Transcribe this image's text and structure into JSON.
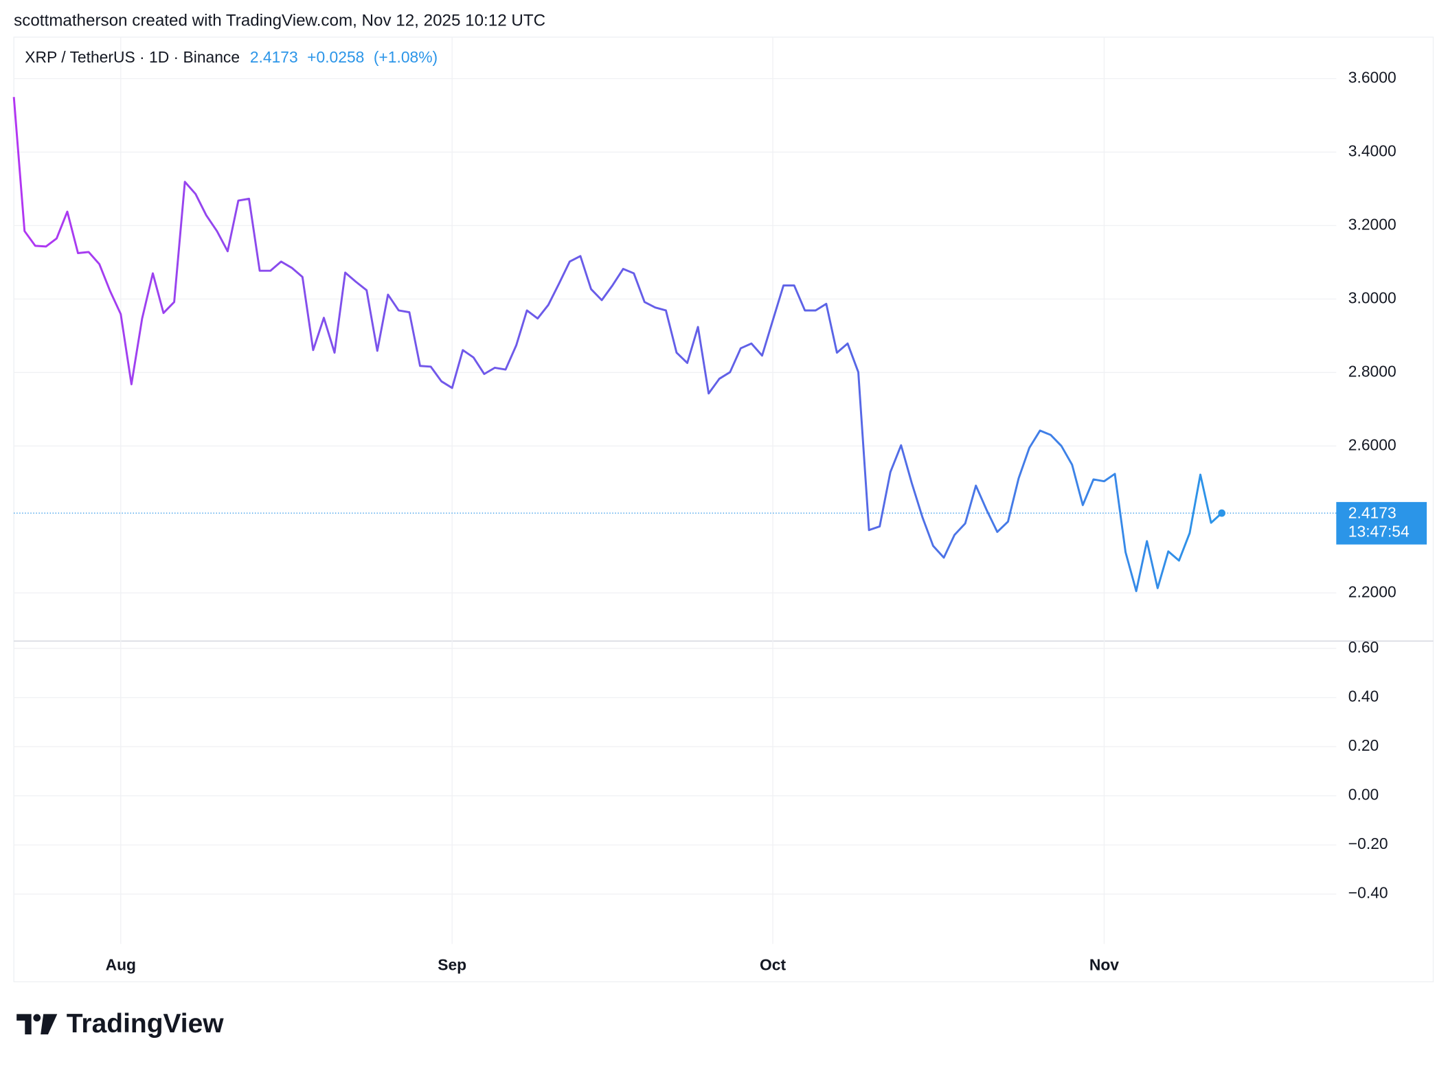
{
  "attribution": "scottmatherson created with TradingView.com, Nov 12, 2025 10:12 UTC",
  "logo": "TradingView",
  "chart_data": [
    {
      "type": "line",
      "title": "XRP / TetherUS · 1D · Binance",
      "change": "+0.0258",
      "change_percent": "(+1.08%)",
      "countdown": "13:47:54",
      "colors": [
        "#b236f2",
        "#7357ea",
        "#5c63e6",
        "#2b95e8"
      ],
      "categories": [
        null,
        null,
        null,
        null,
        null,
        null,
        null,
        null,
        null,
        null,
        "Aug",
        null,
        null,
        null,
        null,
        null,
        null,
        null,
        null,
        null,
        null,
        null,
        null,
        null,
        null,
        null,
        null,
        null,
        null,
        null,
        null,
        null,
        null,
        null,
        null,
        null,
        null,
        null,
        null,
        null,
        null,
        "Sep",
        null,
        null,
        null,
        null,
        null,
        null,
        null,
        null,
        null,
        null,
        null,
        null,
        null,
        null,
        null,
        null,
        null,
        null,
        null,
        null,
        null,
        null,
        null,
        null,
        null,
        null,
        null,
        null,
        null,
        "Oct",
        null,
        null,
        null,
        null,
        null,
        null,
        null,
        null,
        null,
        null,
        null,
        null,
        null,
        null,
        null,
        null,
        null,
        null,
        null,
        null,
        null,
        null,
        null,
        null,
        null,
        null,
        null,
        null,
        null,
        null,
        "Nov",
        null,
        null,
        null,
        null,
        null,
        null,
        null,
        null,
        null,
        null,
        null
      ],
      "values": [
        3.55,
        3.185,
        3.145,
        3.143,
        3.165,
        3.238,
        3.125,
        3.128,
        3.095,
        3.022,
        2.959,
        2.768,
        2.947,
        3.07,
        2.962,
        2.992,
        3.319,
        3.286,
        3.228,
        3.185,
        3.13,
        3.268,
        3.273,
        3.077,
        3.077,
        3.102,
        3.085,
        3.06,
        2.861,
        2.949,
        2.854,
        3.072,
        3.047,
        3.024,
        2.859,
        3.012,
        2.969,
        2.964,
        2.818,
        2.816,
        2.776,
        2.758,
        2.861,
        2.841,
        2.796,
        2.813,
        2.808,
        2.874,
        2.969,
        2.947,
        2.984,
        3.042,
        3.102,
        3.117,
        3.027,
        2.997,
        3.037,
        3.082,
        3.07,
        2.992,
        2.977,
        2.969,
        2.854,
        2.826,
        2.924,
        2.743,
        2.783,
        2.801,
        2.866,
        2.879,
        2.846,
        2.942,
        3.037,
        3.037,
        2.969,
        2.969,
        2.987,
        2.854,
        2.879,
        2.801,
        2.371,
        2.381,
        2.529,
        2.602,
        2.499,
        2.406,
        2.328,
        2.296,
        2.358,
        2.389,
        2.492,
        2.426,
        2.366,
        2.394,
        2.512,
        2.595,
        2.642,
        2.63,
        2.6,
        2.549,
        2.439,
        2.509,
        2.504,
        2.524,
        2.311,
        2.205,
        2.341,
        2.213,
        2.313,
        2.288,
        2.363,
        2.522,
        2.391,
        2.4173
      ],
      "ylim": [
        2.069,
        3.713
      ],
      "yticks": [
        {
          "value": 3.6,
          "label": "3.6000"
        },
        {
          "value": 3.4,
          "label": "3.4000"
        },
        {
          "value": 3.2,
          "label": "3.2000"
        },
        {
          "value": 3.0,
          "label": "3.0000"
        },
        {
          "value": 2.8,
          "label": "2.8000"
        },
        {
          "value": 2.6,
          "label": "2.6000"
        },
        {
          "value": 2.2,
          "label": "2.2000"
        }
      ],
      "grid": true
    },
    {
      "type": "pane",
      "ylim": [
        -0.603,
        0.63
      ],
      "yticks": [
        {
          "value": 0.6,
          "label": "0.60"
        },
        {
          "value": 0.4,
          "label": "0.40"
        },
        {
          "value": 0.2,
          "label": "0.20"
        },
        {
          "value": 0,
          "label": "0.00"
        },
        {
          "value": -0.2,
          "label": "−0.20"
        },
        {
          "value": -0.4,
          "label": "−0.40"
        }
      ],
      "grid": true
    }
  ]
}
